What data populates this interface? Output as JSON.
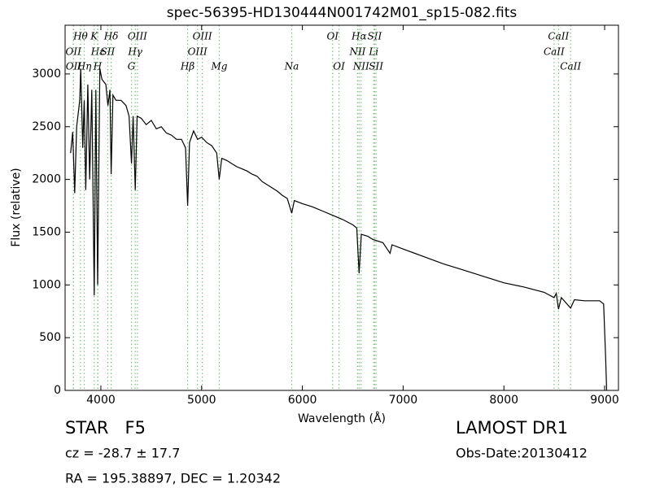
{
  "chart_data": {
    "type": "line",
    "title": "spec-56395-HD130444N001742M01_sp15-082.fits",
    "xlabel": "Wavelength (Å)",
    "ylabel": "Flux (relative)",
    "xlim": [
      3645,
      9137
    ],
    "ylim": [
      0,
      3462
    ],
    "xticks": [
      4000,
      5000,
      6000,
      7000,
      8000,
      9000
    ],
    "yticks": [
      0,
      500,
      1000,
      1500,
      2000,
      2500,
      3000
    ],
    "color": "#000000",
    "line_color_annotations": "#7fbf7f",
    "x": [
      3700,
      3720,
      3740,
      3760,
      3790,
      3800,
      3820,
      3835,
      3850,
      3870,
      3889,
      3910,
      3934,
      3950,
      3968,
      3990,
      4010,
      4050,
      4070,
      4090,
      4102,
      4120,
      4150,
      4200,
      4250,
      4280,
      4304,
      4320,
      4341,
      4360,
      4400,
      4450,
      4500,
      4550,
      4600,
      4650,
      4700,
      4750,
      4800,
      4840,
      4861,
      4880,
      4920,
      4960,
      5000,
      5050,
      5100,
      5150,
      5175,
      5200,
      5250,
      5300,
      5350,
      5400,
      5450,
      5500,
      5550,
      5600,
      5650,
      5700,
      5750,
      5800,
      5850,
      5894,
      5920,
      6000,
      6100,
      6200,
      6300,
      6400,
      6500,
      6540,
      6563,
      6585,
      6650,
      6700,
      6800,
      6870,
      6890,
      7000,
      7200,
      7400,
      7600,
      7800,
      8000,
      8200,
      8400,
      8498,
      8520,
      8542,
      8570,
      8662,
      8700,
      8800,
      8950,
      8990,
      9010,
      9020
    ],
    "values": [
      2250,
      2450,
      1870,
      2500,
      2750,
      3050,
      2300,
      2750,
      1900,
      2900,
      2000,
      2850,
      900,
      2850,
      1000,
      3050,
      2950,
      2900,
      2700,
      2850,
      2050,
      2800,
      2750,
      2750,
      2700,
      2600,
      2150,
      2600,
      1900,
      2600,
      2580,
      2520,
      2560,
      2480,
      2500,
      2440,
      2420,
      2380,
      2380,
      2300,
      1750,
      2350,
      2460,
      2380,
      2400,
      2350,
      2320,
      2250,
      2000,
      2200,
      2180,
      2150,
      2120,
      2100,
      2080,
      2050,
      2030,
      1980,
      1950,
      1920,
      1890,
      1850,
      1820,
      1680,
      1800,
      1770,
      1740,
      1700,
      1660,
      1620,
      1570,
      1540,
      1110,
      1480,
      1460,
      1430,
      1400,
      1300,
      1380,
      1340,
      1270,
      1200,
      1140,
      1080,
      1020,
      980,
      930,
      880,
      920,
      770,
      880,
      780,
      860,
      850,
      850,
      820,
      300,
      0
    ],
    "annotations": [
      {
        "label": "Hθ",
        "x": 3798
      },
      {
        "label": "K",
        "x": 3934
      },
      {
        "label": "Hδ",
        "x": 4102
      },
      {
        "label": "OIII",
        "x": 4363
      },
      {
        "label": "OIII",
        "x": 5007
      },
      {
        "label": "OI",
        "x": 6300
      },
      {
        "label": "Hα",
        "x": 6563
      },
      {
        "label": "SII",
        "x": 6717
      },
      {
        "label": "CaII",
        "x": 8542
      },
      {
        "label": "OII",
        "x": 3727
      },
      {
        "label": "Hε",
        "x": 3970
      },
      {
        "label": "SII",
        "x": 4068
      },
      {
        "label": "Hγ",
        "x": 4341
      },
      {
        "label": "OIII",
        "x": 4959
      },
      {
        "label": "NII",
        "x": 6548
      },
      {
        "label": "Li",
        "x": 6708
      },
      {
        "label": "CaII",
        "x": 8498
      },
      {
        "label": "OII",
        "x": 3729
      },
      {
        "label": "Hη",
        "x": 3835
      },
      {
        "label": "H",
        "x": 3968
      },
      {
        "label": "G",
        "x": 4304
      },
      {
        "label": "Hβ",
        "x": 4861
      },
      {
        "label": "Mg",
        "x": 5175
      },
      {
        "label": "Na",
        "x": 5894
      },
      {
        "label": "OI",
        "x": 6363
      },
      {
        "label": "NII",
        "x": 6583
      },
      {
        "label": "SII",
        "x": 6731
      },
      {
        "label": "CaII",
        "x": 8662
      }
    ]
  },
  "info": {
    "class": "STAR   F5",
    "cz": "cz = -28.7 ± 17.7",
    "coords": "RA = 195.38897, DEC = 1.20342",
    "survey": "LAMOST DR1",
    "date": "Obs-Date:20130412"
  }
}
